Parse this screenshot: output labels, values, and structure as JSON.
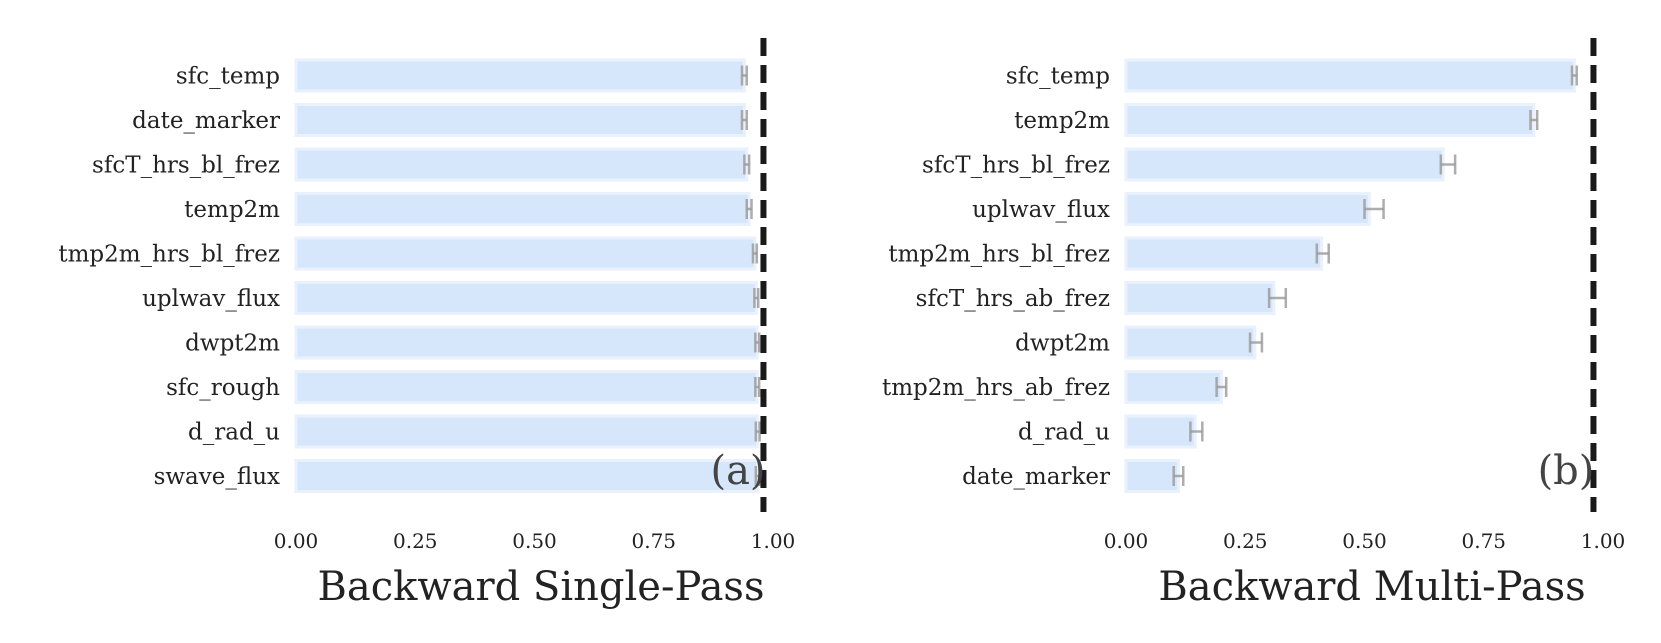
{
  "chart_data": [
    {
      "type": "bar",
      "orientation": "horizontal",
      "title": "Backward Single-Pass",
      "panel_label": "(a)",
      "categories": [
        "sfc_temp",
        "date_marker",
        "sfcT_hrs_bl_frez",
        "temp2m",
        "tmp2m_hrs_bl_frez",
        "uplwav_flux",
        "dwpt2m",
        "sfc_rough",
        "d_rad_u",
        "swave_flux"
      ],
      "values": [
        0.94,
        0.94,
        0.945,
        0.95,
        0.962,
        0.965,
        0.967,
        0.967,
        0.968,
        0.968
      ],
      "error_low": [
        0.935,
        0.935,
        0.94,
        0.945,
        0.958,
        0.961,
        0.963,
        0.963,
        0.964,
        0.964
      ],
      "error_high": [
        0.945,
        0.945,
        0.95,
        0.955,
        0.966,
        0.969,
        0.971,
        0.971,
        0.972,
        0.972
      ],
      "reference_line": 0.98,
      "xlim": [
        0,
        1
      ],
      "xticks": [
        "0.00",
        "0.25",
        "0.50",
        "0.75",
        "1.00"
      ],
      "xtick_values": [
        0,
        0.25,
        0.5,
        0.75,
        1.0
      ],
      "xlabel": "",
      "ylabel": "",
      "grid": false,
      "colors": {
        "bar": "#d6e6fb",
        "bar_border": "#e9f1fc",
        "error": "#999999",
        "reference": "#1a1a1a"
      }
    },
    {
      "type": "bar",
      "orientation": "horizontal",
      "title": "Backward Multi-Pass",
      "panel_label": "(b)",
      "categories": [
        "sfc_temp",
        "temp2m",
        "sfcT_hrs_bl_frez",
        "uplwav_flux",
        "tmp2m_hrs_bl_frez",
        "sfcT_hrs_ab_frez",
        "dwpt2m",
        "tmp2m_hrs_ab_frez",
        "d_rad_u",
        "date_marker"
      ],
      "values": [
        0.94,
        0.855,
        0.665,
        0.51,
        0.41,
        0.31,
        0.27,
        0.2,
        0.145,
        0.11
      ],
      "error_low": [
        0.935,
        0.848,
        0.66,
        0.5,
        0.4,
        0.3,
        0.26,
        0.19,
        0.135,
        0.1
      ],
      "error_high": [
        0.945,
        0.862,
        0.69,
        0.54,
        0.425,
        0.335,
        0.285,
        0.21,
        0.16,
        0.12
      ],
      "reference_line": 0.98,
      "xlim": [
        0,
        1
      ],
      "xticks": [
        "0.00",
        "0.25",
        "0.50",
        "0.75",
        "1.00"
      ],
      "xtick_values": [
        0,
        0.25,
        0.5,
        0.75,
        1.0
      ],
      "xlabel": "",
      "ylabel": "",
      "grid": false,
      "colors": {
        "bar": "#d6e6fb",
        "bar_border": "#e9f1fc",
        "error": "#999999",
        "reference": "#1a1a1a"
      }
    }
  ]
}
